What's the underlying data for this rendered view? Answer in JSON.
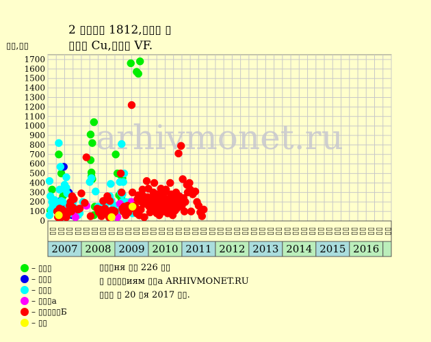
{
  "title": {
    "line1": "2 ▯▯▯▯ 1812,▯▯▯ ▯",
    "line2": "▯▯▯ Cu,▯▯▯ VF."
  },
  "y_unit": "▯▯,▯▯",
  "colors": {
    "background": "#ffffcc",
    "plot_bg": "#ffffcc",
    "grid": "#c8c8c8",
    "watermark": "#cfcfcf",
    "year_teal": "#aadddd",
    "year_green": "#bbeebb"
  },
  "watermark": "arhivmonet.ru",
  "legend": [
    {
      "label": "– ▯▯▯",
      "color": "#00ee00"
    },
    {
      "label": "– ▯▯▯",
      "color": "#0000ee"
    },
    {
      "label": "– ▯▯▯",
      "color": "#00ffff"
    },
    {
      "label": "– ▯▯▯а",
      "color": "#ff00ff"
    },
    {
      "label": "– ▯▯▯▯▯Б",
      "color": "#ff0000"
    },
    {
      "label": "– ▯▯",
      "color": "#ffff00"
    }
  ],
  "info": {
    "line1": "▯▯▯ня ▯▯ 226 ▯▯",
    "line2": "▯ ▯▯▯▯иям ▯▯а ARHIVMONET.RU",
    "line3": "▯▯▯ ▯ 20 ▯я 2017 ▯▯."
  },
  "chart_data": {
    "type": "scatter",
    "ylim": [
      0,
      1750
    ],
    "yticks": [
      0,
      100,
      200,
      300,
      400,
      500,
      600,
      700,
      800,
      900,
      1000,
      1100,
      1200,
      1300,
      1400,
      1500,
      1600,
      1700
    ],
    "grid": true,
    "years": [
      {
        "label": "2007",
        "quarters": 4
      },
      {
        "label": "2008",
        "quarters": 4
      },
      {
        "label": "2009",
        "quarters": 4
      },
      {
        "label": "2010",
        "quarters": 4
      },
      {
        "label": "2011",
        "quarters": 4
      },
      {
        "label": "2012",
        "quarters": 4
      },
      {
        "label": "2013",
        "quarters": 4
      },
      {
        "label": "2014",
        "quarters": 4
      },
      {
        "label": "2015",
        "quarters": 4
      },
      {
        "label": "2016",
        "quarters": 4
      }
    ],
    "trailing_quarters": 1,
    "quarter_labels": [
      "▯▯",
      "▯▯",
      "▯▯",
      "▯▯"
    ],
    "series": [
      {
        "color": "#00ee00",
        "points": [
          [
            0.5,
            330
          ],
          [
            0.3,
            110
          ],
          [
            0.8,
            160
          ],
          [
            0.9,
            200
          ],
          [
            1.3,
            700
          ],
          [
            1.6,
            500
          ],
          [
            1.8,
            260
          ],
          [
            2.4,
            300
          ],
          [
            5.1,
            640
          ],
          [
            5.3,
            820
          ],
          [
            5.5,
            1040
          ],
          [
            5.2,
            470
          ],
          [
            5.3,
            440
          ],
          [
            5.1,
            910
          ],
          [
            5.2,
            510
          ],
          [
            5.6,
            150
          ],
          [
            5.5,
            60
          ],
          [
            8.1,
            700
          ],
          [
            8.3,
            500
          ],
          [
            8.6,
            490
          ],
          [
            8.9,
            450
          ],
          [
            8.5,
            270
          ],
          [
            8.8,
            230
          ],
          [
            9.9,
            1660
          ],
          [
            9.6,
            170
          ],
          [
            10.6,
            1570
          ],
          [
            10.8,
            1550
          ],
          [
            11.0,
            1680
          ],
          [
            11.2,
            200
          ]
        ]
      },
      {
        "color": "#0000ee",
        "points": [
          [
            1.9,
            570
          ],
          [
            1.5,
            210
          ],
          [
            1.6,
            180
          ],
          [
            2.5,
            300
          ],
          [
            2.9,
            60
          ]
        ]
      },
      {
        "color": "#00ffff",
        "points": [
          [
            0.2,
            420
          ],
          [
            0.3,
            260
          ],
          [
            0.5,
            200
          ],
          [
            0.6,
            160
          ],
          [
            0.2,
            60
          ],
          [
            0.4,
            120
          ],
          [
            0.8,
            220
          ],
          [
            1.0,
            180
          ],
          [
            1.3,
            820
          ],
          [
            1.4,
            330
          ],
          [
            1.5,
            570
          ],
          [
            1.6,
            210
          ],
          [
            1.8,
            200
          ],
          [
            2.0,
            380
          ],
          [
            2.1,
            330
          ],
          [
            2.2,
            350
          ],
          [
            2.2,
            460
          ],
          [
            2.3,
            290
          ],
          [
            2.5,
            150
          ],
          [
            2.7,
            80
          ],
          [
            3.0,
            200
          ],
          [
            3.4,
            130
          ],
          [
            3.6,
            60
          ],
          [
            3.8,
            80
          ],
          [
            4.2,
            200
          ],
          [
            5.0,
            410
          ],
          [
            5.2,
            450
          ],
          [
            5.7,
            310
          ],
          [
            6.0,
            150
          ],
          [
            6.3,
            90
          ],
          [
            6.4,
            150
          ],
          [
            6.5,
            160
          ],
          [
            6.7,
            120
          ],
          [
            6.9,
            80
          ],
          [
            7.0,
            120
          ],
          [
            7.2,
            200
          ],
          [
            7.3,
            220
          ],
          [
            7.4,
            260
          ],
          [
            7.5,
            390
          ],
          [
            7.6,
            210
          ],
          [
            7.8,
            120
          ],
          [
            7.9,
            160
          ],
          [
            8.0,
            90
          ],
          [
            8.5,
            100
          ],
          [
            8.6,
            410
          ],
          [
            8.7,
            300
          ],
          [
            8.8,
            810
          ],
          [
            8.9,
            200
          ],
          [
            8.9,
            280
          ],
          [
            9.0,
            410
          ],
          [
            9.1,
            500
          ],
          [
            9.2,
            100
          ],
          [
            9.3,
            200
          ],
          [
            9.5,
            120
          ],
          [
            9.7,
            140
          ],
          [
            9.8,
            200
          ],
          [
            10.0,
            120
          ],
          [
            10.1,
            80
          ],
          [
            10.3,
            120
          ],
          [
            10.5,
            90
          ]
        ]
      },
      {
        "color": "#ff00ff",
        "points": [
          [
            3.1,
            110
          ],
          [
            3.3,
            40
          ],
          [
            4.6,
            160
          ],
          [
            7.4,
            40
          ],
          [
            8.3,
            40
          ],
          [
            8.6,
            180
          ],
          [
            10.0,
            200
          ],
          [
            10.1,
            160
          ]
        ]
      },
      {
        "color": "#ff0000",
        "points": [
          [
            1.1,
            100
          ],
          [
            1.2,
            40
          ],
          [
            1.3,
            70
          ],
          [
            1.4,
            130
          ],
          [
            1.5,
            80
          ],
          [
            1.6,
            40
          ],
          [
            1.7,
            120
          ],
          [
            1.8,
            90
          ],
          [
            1.9,
            50
          ],
          [
            2.0,
            100
          ],
          [
            2.2,
            40
          ],
          [
            2.3,
            70
          ],
          [
            2.6,
            160
          ],
          [
            2.7,
            200
          ],
          [
            2.8,
            100
          ],
          [
            2.9,
            260
          ],
          [
            3.0,
            140
          ],
          [
            3.1,
            230
          ],
          [
            3.6,
            120
          ],
          [
            3.8,
            130
          ],
          [
            4.0,
            290
          ],
          [
            4.4,
            190
          ],
          [
            4.6,
            670
          ],
          [
            5.1,
            50
          ],
          [
            5.9,
            130
          ],
          [
            6.1,
            90
          ],
          [
            6.2,
            120
          ],
          [
            6.4,
            50
          ],
          [
            6.6,
            210
          ],
          [
            6.8,
            130
          ],
          [
            7.0,
            90
          ],
          [
            7.1,
            260
          ],
          [
            7.3,
            40
          ],
          [
            7.4,
            210
          ],
          [
            7.6,
            110
          ],
          [
            7.8,
            110
          ],
          [
            7.9,
            90
          ],
          [
            8.0,
            100
          ],
          [
            8.7,
            500
          ],
          [
            8.8,
            300
          ],
          [
            8.9,
            130
          ],
          [
            9.0,
            100
          ],
          [
            9.1,
            150
          ],
          [
            9.3,
            60
          ],
          [
            9.4,
            120
          ],
          [
            9.5,
            160
          ],
          [
            9.6,
            90
          ],
          [
            10.0,
            1220
          ],
          [
            10.1,
            300
          ],
          [
            10.3,
            130
          ],
          [
            10.4,
            160
          ],
          [
            10.6,
            80
          ],
          [
            10.7,
            230
          ],
          [
            10.8,
            270
          ],
          [
            10.9,
            60
          ],
          [
            11.0,
            260
          ],
          [
            11.1,
            120
          ],
          [
            11.2,
            200
          ],
          [
            11.3,
            330
          ],
          [
            11.4,
            260
          ],
          [
            11.5,
            40
          ],
          [
            11.6,
            180
          ],
          [
            11.7,
            230
          ],
          [
            11.8,
            420
          ],
          [
            11.9,
            250
          ],
          [
            12.0,
            340
          ],
          [
            12.1,
            150
          ],
          [
            12.2,
            90
          ],
          [
            12.3,
            240
          ],
          [
            12.4,
            200
          ],
          [
            12.5,
            130
          ],
          [
            12.6,
            300
          ],
          [
            12.7,
            400
          ],
          [
            12.8,
            220
          ],
          [
            12.9,
            160
          ],
          [
            13.0,
            80
          ],
          [
            13.1,
            280
          ],
          [
            13.2,
            120
          ],
          [
            13.3,
            60
          ],
          [
            13.4,
            200
          ],
          [
            13.5,
            340
          ],
          [
            13.6,
            250
          ],
          [
            13.7,
            160
          ],
          [
            13.8,
            100
          ],
          [
            13.9,
            300
          ],
          [
            14.0,
            170
          ],
          [
            14.1,
            330
          ],
          [
            14.2,
            230
          ],
          [
            14.3,
            80
          ],
          [
            14.4,
            180
          ],
          [
            14.5,
            120
          ],
          [
            14.6,
            400
          ],
          [
            14.7,
            280
          ],
          [
            14.8,
            150
          ],
          [
            14.9,
            60
          ],
          [
            15.0,
            230
          ],
          [
            15.1,
            200
          ],
          [
            15.2,
            110
          ],
          [
            15.3,
            300
          ],
          [
            15.4,
            220
          ],
          [
            15.5,
            140
          ],
          [
            15.6,
            710
          ],
          [
            15.7,
            260
          ],
          [
            15.8,
            190
          ],
          [
            15.9,
            790
          ],
          [
            16.0,
            160
          ],
          [
            16.1,
            440
          ],
          [
            16.2,
            240
          ],
          [
            16.3,
            100
          ],
          [
            16.4,
            200
          ],
          [
            16.6,
            380
          ],
          [
            16.7,
            300
          ],
          [
            16.9,
            400
          ],
          [
            17.0,
            330
          ],
          [
            17.1,
            100
          ],
          [
            17.3,
            280
          ],
          [
            17.6,
            310
          ],
          [
            17.8,
            200
          ],
          [
            18.0,
            160
          ],
          [
            18.2,
            90
          ],
          [
            18.4,
            50
          ],
          [
            18.6,
            120
          ]
        ]
      },
      {
        "color": "#ffff00",
        "points": [
          [
            1.3,
            60
          ],
          [
            7.6,
            40
          ],
          [
            10.1,
            150
          ]
        ]
      }
    ]
  }
}
